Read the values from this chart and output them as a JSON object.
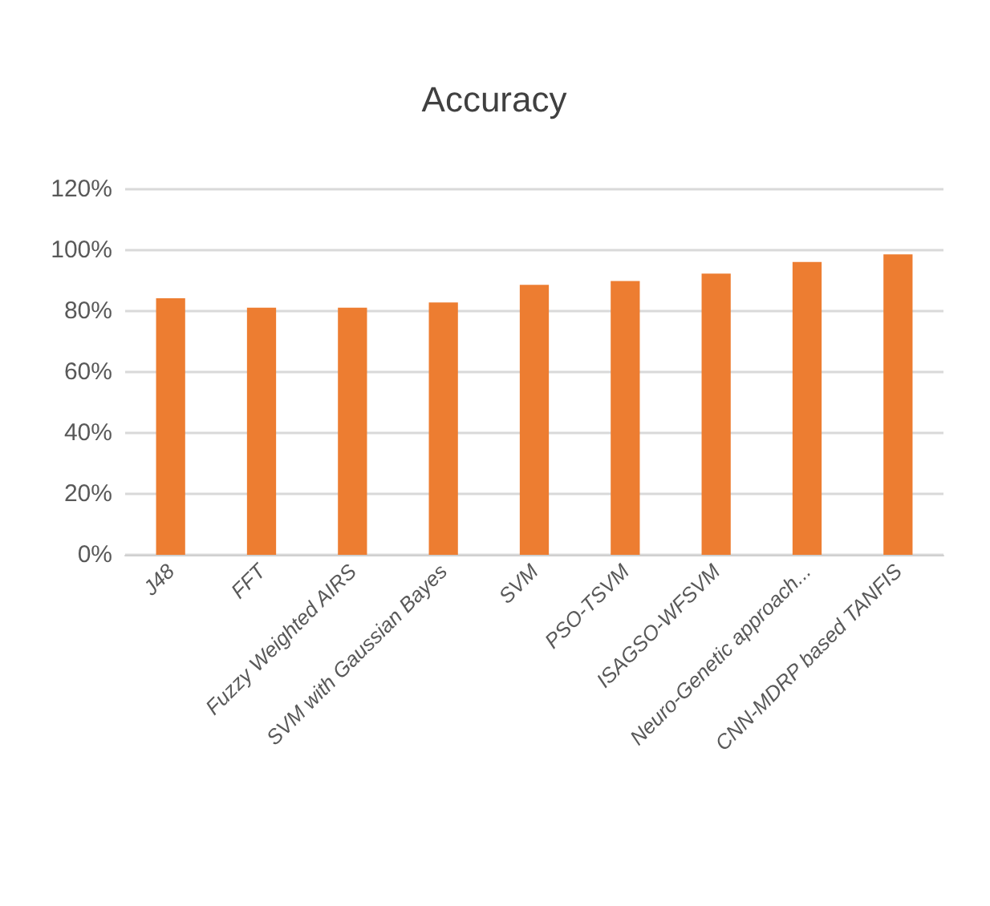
{
  "chart_data": {
    "type": "bar",
    "title": "Accuracy",
    "categories": [
      "J48",
      "FFT",
      "Fuzzy Weighted AIRS",
      "SVM with Gaussian Bayes",
      "SVM",
      "PSO-TSVM",
      "ISAGSO-WFSVM",
      "Neuro-Genetic approach...",
      "CNN-MDRP based TANFIS"
    ],
    "values": [
      84.2,
      81.1,
      81.1,
      82.8,
      88.6,
      89.9,
      92.3,
      96.1,
      98.6
    ],
    "color": "#ed7d31",
    "ylim": [
      0,
      120
    ],
    "yticks": [
      {
        "value": 0,
        "label": "0%"
      },
      {
        "value": 20,
        "label": "20%"
      },
      {
        "value": 40,
        "label": "40%"
      },
      {
        "value": 60,
        "label": "60%"
      },
      {
        "value": 80,
        "label": "80%"
      },
      {
        "value": 100,
        "label": "100%"
      },
      {
        "value": 120,
        "label": "120%"
      }
    ],
    "grid": "y"
  }
}
